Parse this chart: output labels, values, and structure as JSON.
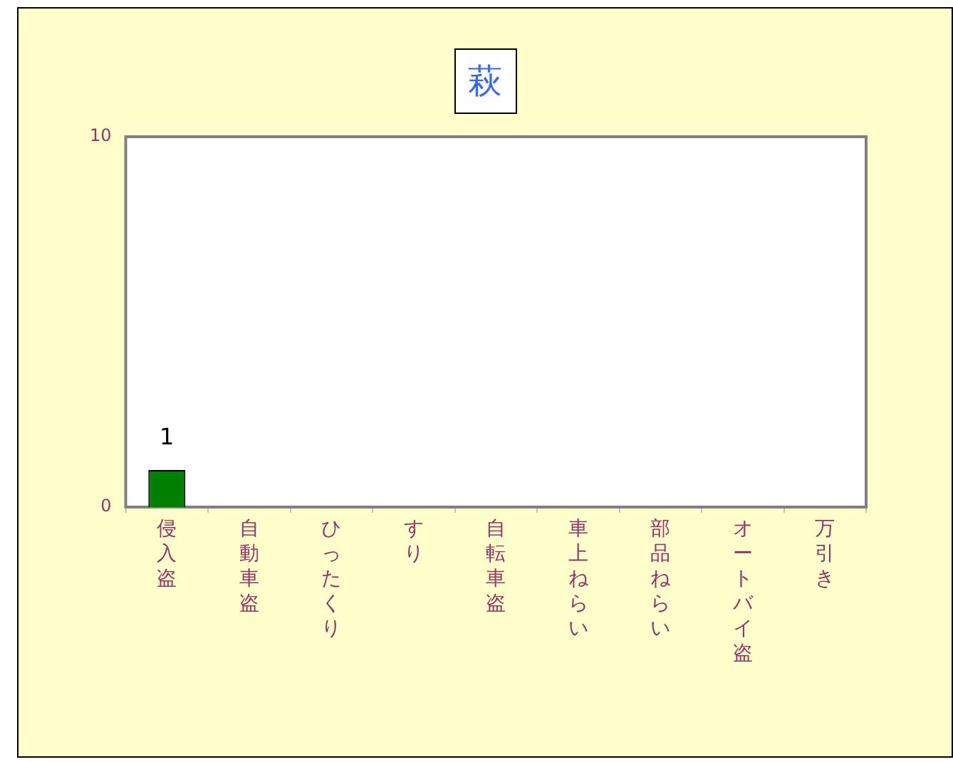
{
  "chart_data": {
    "type": "bar",
    "title": "萩",
    "categories": [
      "侵入盗",
      "自動車盗",
      "ひったくり",
      "すり",
      "自転車盗",
      "車上ねらい",
      "部品ねらい",
      "オートバイ盗",
      "万引き"
    ],
    "values": [
      1,
      0,
      0,
      0,
      0,
      0,
      0,
      0,
      0
    ],
    "value_labels": [
      "1",
      null,
      null,
      null,
      null,
      null,
      null,
      null,
      null
    ],
    "color": "#008000",
    "ylim": [
      0,
      10
    ],
    "yticks": [
      0,
      10
    ],
    "grid": false,
    "legend": false
  }
}
